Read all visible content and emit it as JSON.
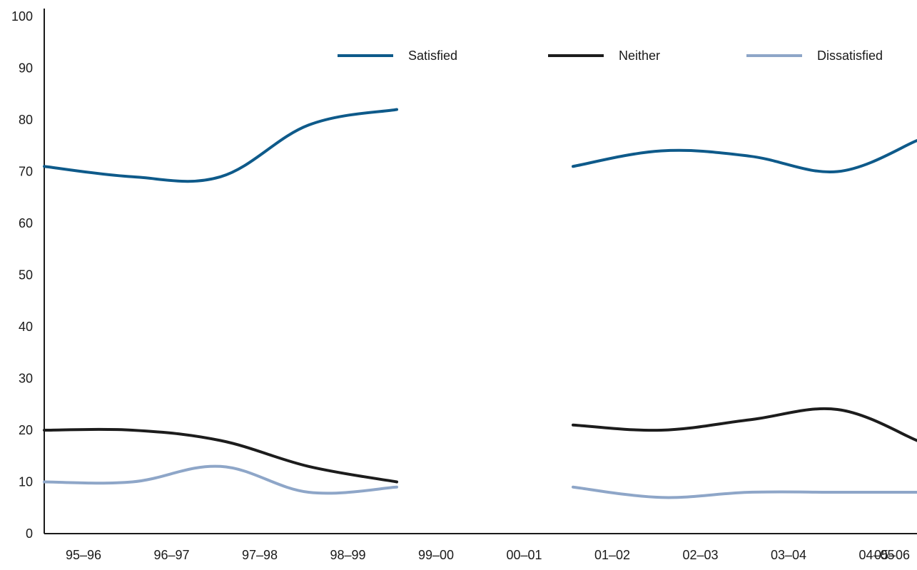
{
  "chart_data": {
    "type": "line",
    "title": "",
    "xlabel": "",
    "ylabel": "",
    "categories": [
      "95–96",
      "96–97",
      "97–98",
      "98–99",
      "99–00",
      "00–01",
      "01–02",
      "02–03",
      "03–04",
      "04–05",
      "05–06"
    ],
    "ylim": [
      0,
      100
    ],
    "yticks": [
      0,
      10,
      20,
      30,
      40,
      50,
      60,
      70,
      80,
      90,
      100
    ],
    "grid": false,
    "legend_position": "top-right",
    "series": [
      {
        "name": "Satisfied",
        "color": "#0e5a8a",
        "values": [
          71,
          69,
          69,
          79,
          82,
          null,
          71,
          74,
          73,
          70,
          76
        ]
      },
      {
        "name": "Neither",
        "color": "#1c1c1c",
        "values": [
          20,
          20,
          18,
          13,
          10,
          null,
          21,
          20,
          22,
          24,
          18
        ]
      },
      {
        "name": "Dissatisfied",
        "color": "#8ea6c8",
        "values": [
          10,
          10,
          13,
          8,
          9,
          null,
          9,
          7,
          8,
          8,
          8
        ]
      }
    ]
  }
}
